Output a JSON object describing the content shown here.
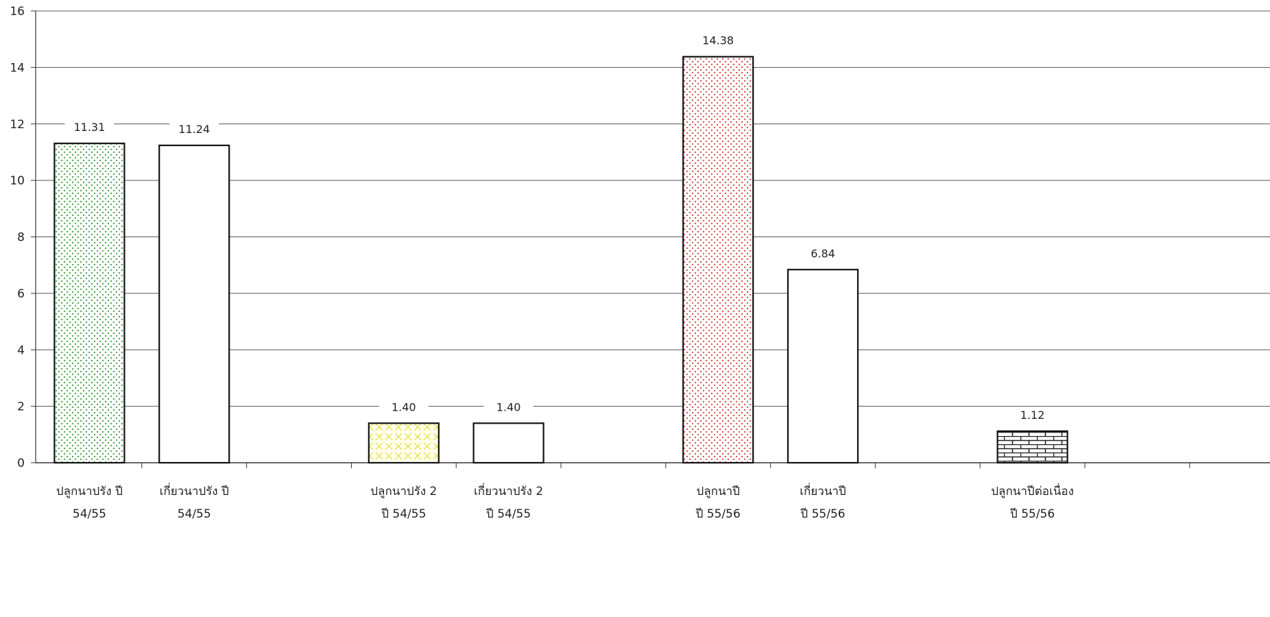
{
  "chart_data": {
    "type": "bar",
    "title": "",
    "xlabel": "",
    "ylabel": "",
    "ylim": [
      0,
      16
    ],
    "yticks": [
      0,
      2,
      4,
      6,
      8,
      10,
      12,
      14,
      16
    ],
    "grid": true,
    "legend": "none",
    "bars": [
      {
        "label_line1": "ปลูกนาปรัง ปี",
        "label_line2": "54/55",
        "value": 11.31,
        "value_label": "11.31",
        "fill": "dots",
        "color": "#3a9a3a"
      },
      {
        "label_line1": "เกี่ยวนาปรัง ปี",
        "label_line2": "54/55",
        "value": 11.24,
        "value_label": "11.24",
        "fill": "none",
        "color": "#000000"
      },
      {
        "label_line1": "ปลูกนาปรัง 2",
        "label_line2": "ปี 54/55",
        "value": 1.4,
        "value_label": "1.40",
        "fill": "cross",
        "color": "#e8e050"
      },
      {
        "label_line1": "เกี่ยวนาปรัง 2",
        "label_line2": "ปี 54/55",
        "value": 1.4,
        "value_label": "1.40",
        "fill": "none",
        "color": "#000000"
      },
      {
        "label_line1": "ปลูกนาปี",
        "label_line2": "ปี 55/56",
        "value": 14.38,
        "value_label": "14.38",
        "fill": "dots",
        "color": "#d04040"
      },
      {
        "label_line1": "เกี่ยวนาปี",
        "label_line2": "ปี 55/56",
        "value": 6.84,
        "value_label": "6.84",
        "fill": "none",
        "color": "#000000"
      },
      {
        "label_line1": "ปลูกนาปีต่อเนื่อง",
        "label_line2": "ปี 55/56",
        "value": 1.12,
        "value_label": "1.12",
        "fill": "brick",
        "color": "#333333"
      }
    ]
  }
}
